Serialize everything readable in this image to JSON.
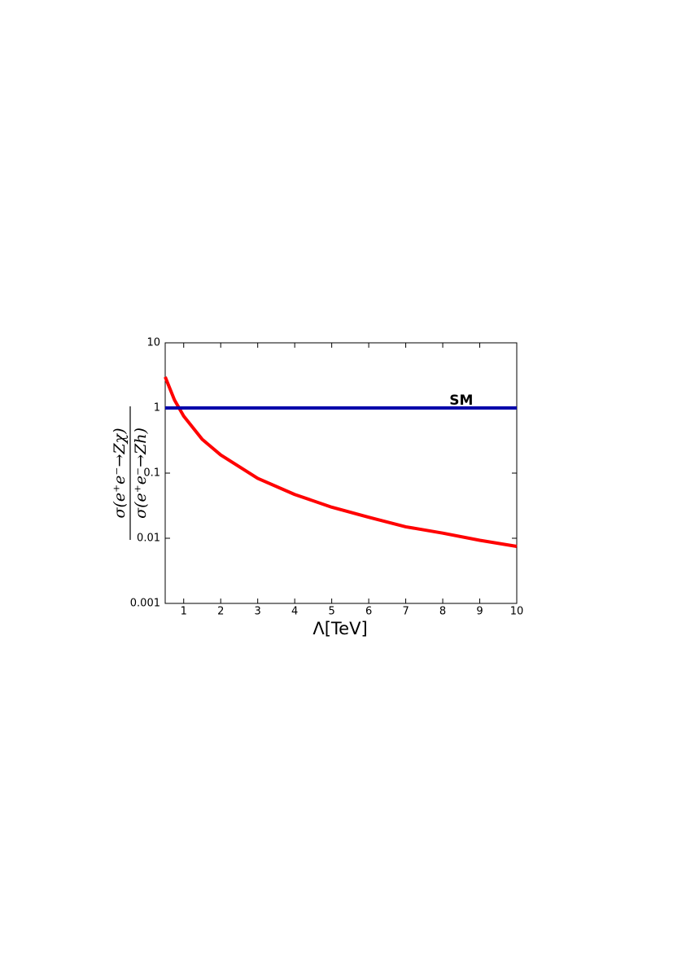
{
  "chart_data": {
    "type": "line",
    "xlabel": "Λ[TeV]",
    "ylabel": [
      "σ(e⁺e⁻→Zχ)",
      "σ(e⁺e⁻→Zh)"
    ],
    "log_y": true,
    "xlim": [
      0.5,
      10
    ],
    "ylim": [
      0.001,
      10
    ],
    "xticks": [
      1,
      2,
      3,
      4,
      5,
      6,
      7,
      8,
      9,
      10
    ],
    "yticks": [
      0.001,
      0.01,
      0.1,
      1,
      10
    ],
    "series": [
      {
        "color": "#ff0000",
        "x": [
          0.5,
          0.75,
          1,
          1.5,
          2,
          3,
          4,
          5,
          6,
          7,
          8,
          9,
          10
        ],
        "values": [
          3,
          1.33,
          0.75,
          0.33,
          0.19,
          0.083,
          0.047,
          0.03,
          0.021,
          0.015,
          0.012,
          0.0093,
          0.0075
        ]
      },
      {
        "color": "#0000aa",
        "x": [
          0.5,
          10
        ],
        "values": [
          1,
          1
        ]
      }
    ],
    "annotations": [
      {
        "text": "SM",
        "x": 8.5,
        "y": 1.3
      }
    ]
  }
}
